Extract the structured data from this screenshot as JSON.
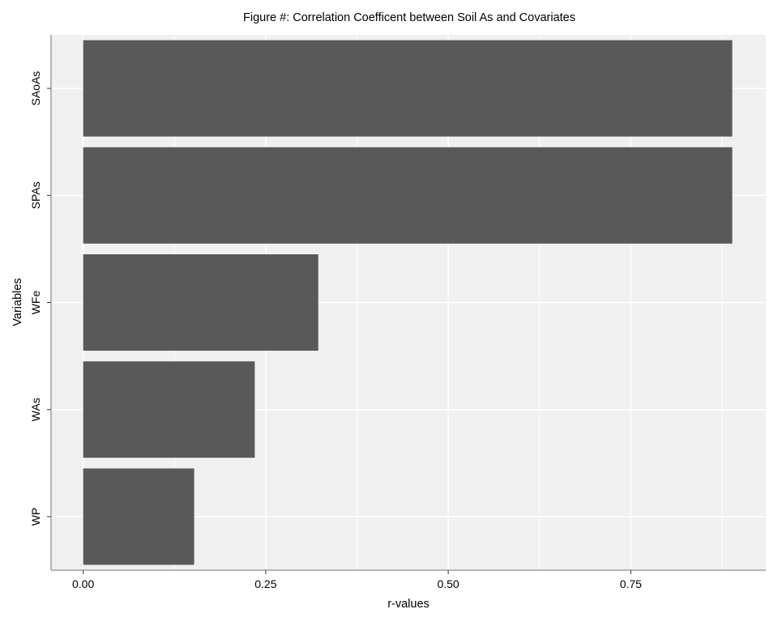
{
  "chart_data": {
    "type": "bar",
    "orientation": "horizontal",
    "title": "Figure #: Correlation Coefficent between Soil As and  Covariates",
    "xlabel": "r-values",
    "ylabel": "Variables",
    "categories": [
      "WP",
      "WAs",
      "WFe",
      "SPAs",
      "SAoAs"
    ],
    "values": [
      0.152,
      0.235,
      0.322,
      0.889,
      0.889
    ],
    "x_ticks": [
      0.0,
      0.25,
      0.5,
      0.75
    ],
    "x_tick_labels": [
      "0.00",
      "0.25",
      "0.50",
      "0.75"
    ],
    "xlim": [
      -0.044,
      0.935
    ],
    "grid": true,
    "legend": "none",
    "bar_color": "#595959",
    "panel_color": "#f0f0f0",
    "grid_color": "#ffffff"
  }
}
